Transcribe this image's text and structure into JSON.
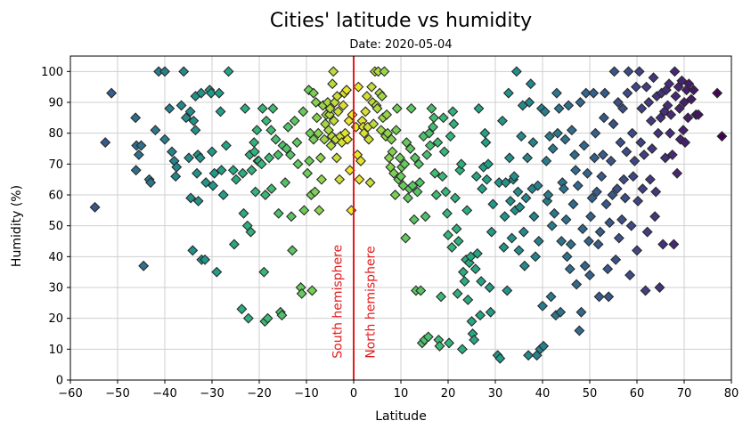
{
  "chart_data": {
    "type": "scatter",
    "title": "Cities' latitude vs humidity",
    "subtitle": "Date: 2020-05-04",
    "xlabel": "Latitude",
    "ylabel": "Humidity (%)",
    "xlim": [
      -60,
      80
    ],
    "ylim": [
      0,
      105
    ],
    "xticks": [
      -60,
      -50,
      -40,
      -30,
      -20,
      -10,
      0,
      10,
      20,
      30,
      40,
      50,
      60,
      70,
      80
    ],
    "xtick_labels": [
      "−60",
      "−50",
      "−40",
      "−30",
      "−20",
      "−10",
      "0",
      "10",
      "20",
      "30",
      "40",
      "50",
      "60",
      "70",
      "80"
    ],
    "yticks": [
      0,
      10,
      20,
      30,
      40,
      50,
      60,
      70,
      80,
      90,
      100
    ],
    "ytick_labels": [
      "0",
      "10",
      "20",
      "30",
      "40",
      "50",
      "60",
      "70",
      "80",
      "90",
      "100"
    ],
    "grid": true,
    "marker": "diamond",
    "colormap": "viridis",
    "color_by": "latitude",
    "equator_line": {
      "x": 0,
      "color": "#e41a1c"
    },
    "annotations": [
      {
        "text": "South hemisphere",
        "x": -3.5,
        "y": 7,
        "color": "#e41a1c",
        "rotation": 90
      },
      {
        "text": "North hemisphere",
        "x": 3.5,
        "y": 7,
        "color": "#e41a1c",
        "rotation": 90
      }
    ],
    "points": [
      [
        -54.8,
        56
      ],
      [
        -52.6,
        77
      ],
      [
        -51.3,
        93
      ],
      [
        -46.2,
        85
      ],
      [
        -46.0,
        76
      ],
      [
        -45.5,
        73
      ],
      [
        -45.0,
        76
      ],
      [
        -46.1,
        68
      ],
      [
        -44.5,
        37
      ],
      [
        -43.3,
        65
      ],
      [
        -43.0,
        64
      ],
      [
        -42.0,
        81
      ],
      [
        -41.3,
        100
      ],
      [
        -40.0,
        100
      ],
      [
        -40.0,
        78
      ],
      [
        -39.0,
        88
      ],
      [
        -38.5,
        74
      ],
      [
        -38.0,
        71
      ],
      [
        -37.7,
        66
      ],
      [
        -37.5,
        69
      ],
      [
        -36.5,
        89
      ],
      [
        -36.0,
        100
      ],
      [
        -35.5,
        85
      ],
      [
        -34.9,
        72
      ],
      [
        -34.6,
        87
      ],
      [
        -34.5,
        59
      ],
      [
        -34.1,
        42
      ],
      [
        -33.9,
        84
      ],
      [
        -33.5,
        92
      ],
      [
        -33.5,
        81
      ],
      [
        -33.2,
        67
      ],
      [
        -33.0,
        73
      ],
      [
        -32.9,
        58
      ],
      [
        -32.5,
        72
      ],
      [
        -32.3,
        93
      ],
      [
        -32.2,
        39
      ],
      [
        -31.5,
        39
      ],
      [
        -31.3,
        64
      ],
      [
        -30.5,
        94
      ],
      [
        -30.2,
        93
      ],
      [
        -30.0,
        74
      ],
      [
        -29.8,
        63
      ],
      [
        -29.5,
        67
      ],
      [
        -29.0,
        35
      ],
      [
        -28.5,
        93
      ],
      [
        -28.2,
        87
      ],
      [
        -28.0,
        68
      ],
      [
        -27.6,
        60
      ],
      [
        -27.0,
        76
      ],
      [
        -26.5,
        100
      ],
      [
        -25.5,
        68
      ],
      [
        -25.3,
        44
      ],
      [
        -24.9,
        65
      ],
      [
        -23.7,
        23
      ],
      [
        -23.5,
        67
      ],
      [
        -23.3,
        54
      ],
      [
        -23.0,
        88
      ],
      [
        -22.5,
        50
      ],
      [
        -22.3,
        20
      ],
      [
        -22.0,
        73
      ],
      [
        -21.8,
        48
      ],
      [
        -21.6,
        68
      ],
      [
        -21.1,
        77
      ],
      [
        -21.0,
        74
      ],
      [
        -20.8,
        61
      ],
      [
        -20.5,
        81
      ],
      [
        -20.3,
        71
      ],
      [
        -20.1,
        71
      ],
      [
        -19.5,
        70
      ],
      [
        -19.3,
        88
      ],
      [
        -19.0,
        35
      ],
      [
        -18.8,
        19
      ],
      [
        -18.7,
        60
      ],
      [
        -18.5,
        84
      ],
      [
        -18.2,
        20
      ],
      [
        -17.9,
        72
      ],
      [
        -17.5,
        81
      ],
      [
        -17.4,
        62
      ],
      [
        -17.1,
        88
      ],
      [
        -16.5,
        78
      ],
      [
        -16.0,
        73
      ],
      [
        -15.9,
        54
      ],
      [
        -15.5,
        22
      ],
      [
        -15.2,
        21
      ],
      [
        -15.0,
        76
      ],
      [
        -14.5,
        64
      ],
      [
        -14.2,
        75
      ],
      [
        -13.9,
        82
      ],
      [
        -13.4,
        73
      ],
      [
        -13.2,
        53
      ],
      [
        -13.0,
        42
      ],
      [
        -12.5,
        84
      ],
      [
        -12.0,
        77
      ],
      [
        -11.8,
        70
      ],
      [
        -11.2,
        30
      ],
      [
        -11.0,
        28
      ],
      [
        -10.7,
        87
      ],
      [
        -10.5,
        55
      ],
      [
        -9.8,
        67
      ],
      [
        -9.5,
        94
      ],
      [
        -9.4,
        71
      ],
      [
        -9.2,
        80
      ],
      [
        -9.0,
        60
      ],
      [
        -8.8,
        29
      ],
      [
        -8.5,
        93
      ],
      [
        -8.5,
        78
      ],
      [
        -8.2,
        61
      ],
      [
        -8.0,
        90
      ],
      [
        -7.8,
        85
      ],
      [
        -7.5,
        80
      ],
      [
        -7.3,
        55
      ],
      [
        -7.0,
        72
      ],
      [
        -6.8,
        65
      ],
      [
        -6.5,
        89
      ],
      [
        -6.2,
        78
      ],
      [
        -6.0,
        83
      ],
      [
        -5.8,
        86
      ],
      [
        -5.5,
        90
      ],
      [
        -5.3,
        81
      ],
      [
        -5.1,
        86
      ],
      [
        -5.0,
        88
      ],
      [
        -4.8,
        76
      ],
      [
        -4.6,
        79
      ],
      [
        -4.5,
        96
      ],
      [
        -4.3,
        100
      ],
      [
        -4.2,
        84
      ],
      [
        -4.0,
        90
      ],
      [
        -3.8,
        78
      ],
      [
        -3.6,
        72
      ],
      [
        -3.5,
        92
      ],
      [
        -3.3,
        87
      ],
      [
        -3.0,
        65
      ],
      [
        -2.8,
        79
      ],
      [
        -2.5,
        77
      ],
      [
        -2.2,
        89
      ],
      [
        -2.0,
        93
      ],
      [
        -1.8,
        80
      ],
      [
        -1.5,
        94
      ],
      [
        -1.3,
        78
      ],
      [
        -1.0,
        84
      ],
      [
        -0.8,
        68
      ],
      [
        -0.5,
        55
      ],
      [
        -0.3,
        86
      ],
      [
        0.5,
        82
      ],
      [
        0.8,
        73
      ],
      [
        1.0,
        95
      ],
      [
        1.2,
        65
      ],
      [
        1.5,
        71
      ],
      [
        1.8,
        84
      ],
      [
        2.0,
        82
      ],
      [
        2.2,
        80
      ],
      [
        2.5,
        87
      ],
      [
        2.8,
        92
      ],
      [
        3.0,
        82
      ],
      [
        3.2,
        78
      ],
      [
        3.5,
        64
      ],
      [
        3.8,
        95
      ],
      [
        4.0,
        90
      ],
      [
        4.2,
        83
      ],
      [
        4.5,
        100
      ],
      [
        4.8,
        89
      ],
      [
        5.0,
        88
      ],
      [
        5.2,
        100
      ],
      [
        5.5,
        93
      ],
      [
        5.8,
        81
      ],
      [
        6.0,
        92
      ],
      [
        6.2,
        85
      ],
      [
        6.5,
        100
      ],
      [
        6.8,
        79
      ],
      [
        7.0,
        86
      ],
      [
        7.2,
        80
      ],
      [
        7.5,
        72
      ],
      [
        7.8,
        69
      ],
      [
        8.0,
        78
      ],
      [
        8.2,
        74
      ],
      [
        8.5,
        67
      ],
      [
        8.8,
        60
      ],
      [
        9.0,
        81
      ],
      [
        9.2,
        88
      ],
      [
        9.5,
        65
      ],
      [
        9.8,
        72
      ],
      [
        10.0,
        66
      ],
      [
        10.2,
        69
      ],
      [
        10.5,
        63
      ],
      [
        10.8,
        70
      ],
      [
        11.0,
        46
      ],
      [
        11.2,
        77
      ],
      [
        11.5,
        59
      ],
      [
        11.8,
        62
      ],
      [
        12.0,
        75
      ],
      [
        12.2,
        88
      ],
      [
        12.5,
        63
      ],
      [
        12.8,
        52
      ],
      [
        13.0,
        72
      ],
      [
        13.2,
        29
      ],
      [
        13.5,
        61
      ],
      [
        13.8,
        70
      ],
      [
        14.0,
        64
      ],
      [
        14.2,
        29
      ],
      [
        14.5,
        12
      ],
      [
        14.8,
        79
      ],
      [
        15.0,
        13
      ],
      [
        15.2,
        53
      ],
      [
        15.5,
        73
      ],
      [
        15.8,
        14
      ],
      [
        16.0,
        80
      ],
      [
        16.2,
        76
      ],
      [
        16.5,
        88
      ],
      [
        16.8,
        82
      ],
      [
        17.0,
        85
      ],
      [
        17.2,
        67
      ],
      [
        17.5,
        60
      ],
      [
        17.8,
        77
      ],
      [
        18.0,
        13
      ],
      [
        18.2,
        11
      ],
      [
        18.5,
        27
      ],
      [
        18.8,
        66
      ],
      [
        19.0,
        85
      ],
      [
        19.2,
        74
      ],
      [
        19.5,
        61
      ],
      [
        19.8,
        54
      ],
      [
        20.0,
        47
      ],
      [
        20.2,
        12
      ],
      [
        20.5,
        79
      ],
      [
        20.8,
        43
      ],
      [
        21.0,
        87
      ],
      [
        21.2,
        83
      ],
      [
        21.5,
        59
      ],
      [
        21.8,
        49
      ],
      [
        22.0,
        28
      ],
      [
        22.2,
        45
      ],
      [
        22.5,
        68
      ],
      [
        22.8,
        70
      ],
      [
        23.0,
        10
      ],
      [
        23.2,
        35
      ],
      [
        23.5,
        32
      ],
      [
        23.8,
        39
      ],
      [
        24.0,
        55
      ],
      [
        24.2,
        26
      ],
      [
        24.5,
        38
      ],
      [
        24.8,
        40
      ],
      [
        25.0,
        19
      ],
      [
        25.2,
        15
      ],
      [
        25.5,
        13
      ],
      [
        25.8,
        36
      ],
      [
        26.0,
        66
      ],
      [
        26.2,
        41
      ],
      [
        26.5,
        88
      ],
      [
        26.8,
        21
      ],
      [
        27.0,
        32
      ],
      [
        27.2,
        62
      ],
      [
        27.5,
        69
      ],
      [
        27.8,
        80
      ],
      [
        28.0,
        77
      ],
      [
        28.2,
        65
      ],
      [
        28.5,
        70
      ],
      [
        28.8,
        30
      ],
      [
        29.0,
        22
      ],
      [
        29.2,
        48
      ],
      [
        29.5,
        57
      ],
      [
        30.5,
        8
      ],
      [
        30.8,
        64
      ],
      [
        31.0,
        7
      ],
      [
        31.5,
        84
      ],
      [
        31.8,
        43
      ],
      [
        32.0,
        53
      ],
      [
        32.2,
        64
      ],
      [
        32.5,
        29
      ],
      [
        32.8,
        93
      ],
      [
        33.0,
        72
      ],
      [
        33.2,
        58
      ],
      [
        33.5,
        46
      ],
      [
        33.8,
        65
      ],
      [
        34.0,
        66
      ],
      [
        34.2,
        55
      ],
      [
        34.5,
        100
      ],
      [
        34.8,
        61
      ],
      [
        35.0,
        42
      ],
      [
        35.2,
        56
      ],
      [
        35.5,
        79
      ],
      [
        35.8,
        89
      ],
      [
        36.0,
        48
      ],
      [
        36.2,
        37
      ],
      [
        36.5,
        59
      ],
      [
        36.8,
        72
      ],
      [
        37.0,
        8
      ],
      [
        37.2,
        90
      ],
      [
        37.5,
        96
      ],
      [
        37.8,
        62
      ],
      [
        38.0,
        77
      ],
      [
        38.2,
        53
      ],
      [
        38.5,
        40
      ],
      [
        38.8,
        8
      ],
      [
        39.0,
        63
      ],
      [
        39.2,
        45
      ],
      [
        39.5,
        10
      ],
      [
        39.8,
        88
      ],
      [
        40.0,
        24
      ],
      [
        40.2,
        11
      ],
      [
        40.5,
        87
      ],
      [
        40.8,
        71
      ],
      [
        41.0,
        58
      ],
      [
        41.2,
        60
      ],
      [
        41.5,
        79
      ],
      [
        41.8,
        27
      ],
      [
        42.0,
        50
      ],
      [
        42.2,
        75
      ],
      [
        42.5,
        54
      ],
      [
        42.8,
        21
      ],
      [
        43.0,
        93
      ],
      [
        43.2,
        80
      ],
      [
        43.5,
        88
      ],
      [
        43.8,
        22
      ],
      [
        44.0,
        45
      ],
      [
        44.2,
        64
      ],
      [
        44.5,
        62
      ],
      [
        44.8,
        78
      ],
      [
        45.0,
        52
      ],
      [
        45.2,
        40
      ],
      [
        45.5,
        89
      ],
      [
        45.8,
        36
      ],
      [
        46.0,
        44
      ],
      [
        46.2,
        81
      ],
      [
        46.5,
        57
      ],
      [
        46.8,
        73
      ],
      [
        47.0,
        68
      ],
      [
        47.2,
        31
      ],
      [
        47.5,
        63
      ],
      [
        47.8,
        16
      ],
      [
        48.0,
        90
      ],
      [
        48.2,
        22
      ],
      [
        48.5,
        49
      ],
      [
        48.8,
        76
      ],
      [
        49.0,
        37
      ],
      [
        49.2,
        93
      ],
      [
        49.5,
        67
      ],
      [
        49.8,
        45
      ],
      [
        50.0,
        34
      ],
      [
        50.2,
        53
      ],
      [
        50.5,
        59
      ],
      [
        50.8,
        93
      ],
      [
        51.0,
        72
      ],
      [
        51.2,
        80
      ],
      [
        51.5,
        61
      ],
      [
        51.8,
        44
      ],
      [
        52.0,
        27
      ],
      [
        52.2,
        48
      ],
      [
        52.5,
        66
      ],
      [
        52.8,
        73
      ],
      [
        53.0,
        85
      ],
      [
        53.2,
        93
      ],
      [
        53.5,
        57
      ],
      [
        53.8,
        36
      ],
      [
        54.0,
        27
      ],
      [
        54.2,
        51
      ],
      [
        54.5,
        71
      ],
      [
        54.8,
        60
      ],
      [
        55.0,
        83
      ],
      [
        55.2,
        100
      ],
      [
        55.5,
        39
      ],
      [
        55.8,
        62
      ],
      [
        56.0,
        90
      ],
      [
        56.2,
        46
      ],
      [
        56.5,
        77
      ],
      [
        56.8,
        52
      ],
      [
        57.0,
        88
      ],
      [
        57.2,
        65
      ],
      [
        57.5,
        59
      ],
      [
        57.8,
        74
      ],
      [
        58.0,
        93
      ],
      [
        58.2,
        100
      ],
      [
        58.5,
        34
      ],
      [
        58.8,
        50
      ],
      [
        59.0,
        80
      ],
      [
        59.2,
        66
      ],
      [
        59.5,
        71
      ],
      [
        59.8,
        95
      ],
      [
        60.0,
        42
      ],
      [
        60.2,
        58
      ],
      [
        60.5,
        100
      ],
      [
        60.8,
        77
      ],
      [
        61.0,
        88
      ],
      [
        61.2,
        62
      ],
      [
        61.5,
        73
      ],
      [
        61.8,
        29
      ],
      [
        62.0,
        95
      ],
      [
        62.2,
        48
      ],
      [
        62.5,
        90
      ],
      [
        62.8,
        65
      ],
      [
        63.0,
        84
      ],
      [
        63.2,
        75
      ],
      [
        63.5,
        98
      ],
      [
        63.8,
        53
      ],
      [
        64.0,
        61
      ],
      [
        64.2,
        92
      ],
      [
        64.5,
        80
      ],
      [
        64.8,
        30
      ],
      [
        65.0,
        85
      ],
      [
        65.2,
        93
      ],
      [
        65.5,
        44
      ],
      [
        65.8,
        87
      ],
      [
        66.0,
        72
      ],
      [
        66.2,
        94
      ],
      [
        66.5,
        89
      ],
      [
        66.8,
        96
      ],
      [
        67.0,
        80
      ],
      [
        67.2,
        86
      ],
      [
        67.5,
        73
      ],
      [
        67.8,
        44
      ],
      [
        68.0,
        100
      ],
      [
        68.2,
        92
      ],
      [
        68.5,
        67
      ],
      [
        68.8,
        95
      ],
      [
        69.0,
        88
      ],
      [
        69.2,
        78
      ],
      [
        69.5,
        97
      ],
      [
        69.8,
        81
      ],
      [
        70.0,
        90
      ],
      [
        70.2,
        77
      ],
      [
        70.5,
        94
      ],
      [
        70.8,
        85
      ],
      [
        71.0,
        96
      ],
      [
        71.5,
        91
      ],
      [
        72.0,
        94
      ],
      [
        72.5,
        86
      ],
      [
        73.0,
        86
      ],
      [
        77.0,
        93
      ],
      [
        78.0,
        79
      ]
    ]
  }
}
